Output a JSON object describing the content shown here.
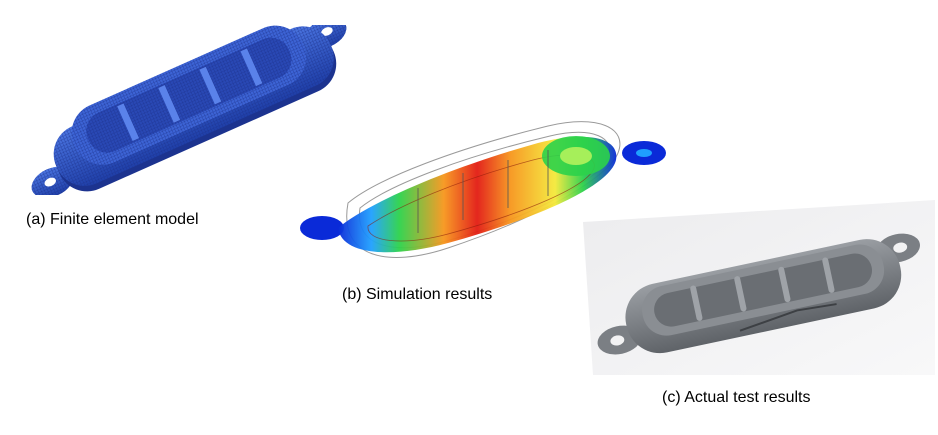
{
  "figure": {
    "panels": [
      {
        "id": "a",
        "caption": "(a) Finite element model",
        "mesh_color": "#2d55c8"
      },
      {
        "id": "b",
        "caption": "(b) Simulation results",
        "colormap": [
          "#0a2ad8",
          "#1fa0ff",
          "#2cd24a",
          "#f4e93a",
          "#f7961c",
          "#e21b12"
        ]
      },
      {
        "id": "c",
        "caption": "(c) Actual test results",
        "part_color": "#7b7f84"
      }
    ]
  }
}
